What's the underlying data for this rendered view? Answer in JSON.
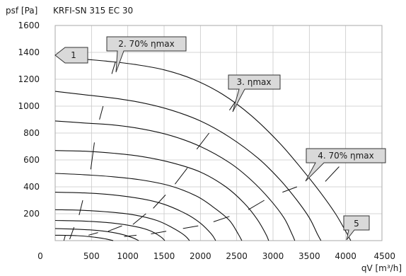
{
  "chart_data": {
    "type": "line",
    "title": "KRFI-SN 315 EC 30",
    "ylabel": "psf [Pa]",
    "xlabel": "qV [m³/h]",
    "xlim": [
      0,
      4500
    ],
    "ylim": [
      0,
      1600
    ],
    "x_ticks": [
      "0",
      "500",
      "1000",
      "1500",
      "2000",
      "2500",
      "3000",
      "3500",
      "4000",
      "4500"
    ],
    "y_ticks": [
      "200",
      "400",
      "600",
      "800",
      "1000",
      "1200",
      "1400",
      "1600"
    ],
    "grid": true,
    "callouts": [
      "1",
      "2. 70% ηmax",
      "3. ηmax",
      "4. 70% ηmax",
      "5"
    ],
    "series": [
      {
        "x": [
          0,
          300,
          700,
          1100,
          1500,
          1900,
          2300,
          2700,
          3100,
          3400,
          3650,
          3860,
          4010,
          4070
        ],
        "y": [
          1380,
          1355,
          1335,
          1310,
          1270,
          1200,
          1090,
          930,
          720,
          530,
          360,
          200,
          60,
          0
        ]
      },
      {
        "x": [
          0,
          400,
          800,
          1200,
          1600,
          2000,
          2400,
          2800,
          3100,
          3330,
          3500,
          3610,
          3660
        ],
        "y": [
          1110,
          1085,
          1060,
          1025,
          970,
          890,
          770,
          610,
          450,
          300,
          170,
          50,
          0
        ]
      },
      {
        "x": [
          0,
          400,
          800,
          1200,
          1600,
          2000,
          2400,
          2700,
          2950,
          3150,
          3260,
          3300
        ],
        "y": [
          890,
          875,
          860,
          830,
          780,
          700,
          580,
          450,
          310,
          170,
          50,
          0
        ]
      },
      {
        "x": [
          0,
          400,
          800,
          1200,
          1600,
          2000,
          2350,
          2600,
          2780,
          2900,
          2940
        ],
        "y": [
          670,
          665,
          650,
          625,
          580,
          510,
          400,
          280,
          160,
          50,
          0
        ]
      },
      {
        "x": [
          0,
          400,
          800,
          1200,
          1600,
          1950,
          2200,
          2400,
          2520,
          2570
        ],
        "y": [
          500,
          490,
          475,
          450,
          405,
          330,
          240,
          150,
          50,
          0
        ]
      },
      {
        "x": [
          0,
          400,
          800,
          1200,
          1500,
          1800,
          2000,
          2150,
          2210
        ],
        "y": [
          360,
          355,
          340,
          310,
          270,
          200,
          130,
          50,
          0
        ]
      },
      {
        "x": [
          0,
          400,
          800,
          1100,
          1400,
          1600,
          1780,
          1850
        ],
        "y": [
          230,
          225,
          210,
          190,
          150,
          100,
          40,
          0
        ]
      },
      {
        "x": [
          0,
          400,
          800,
          1100,
          1300,
          1450,
          1510
        ],
        "y": [
          150,
          145,
          130,
          105,
          75,
          30,
          0
        ]
      },
      {
        "x": [
          0,
          300,
          600,
          850,
          1050,
          1150
        ],
        "y": [
          90,
          85,
          75,
          55,
          25,
          0
        ]
      },
      {
        "x": [
          0,
          300,
          550,
          700,
          800
        ],
        "y": [
          40,
          37,
          25,
          12,
          0
        ]
      }
    ],
    "efficiency_ticks": [
      [
        [
          780,
          1240
        ],
        [
          830,
          1330
        ]
      ],
      [
        [
          610,
          900
        ],
        [
          660,
          1000
        ]
      ],
      [
        [
          490,
          530
        ],
        [
          540,
          730
        ]
      ],
      [
        [
          330,
          190
        ],
        [
          380,
          300
        ]
      ],
      [
        [
          200,
          10
        ],
        [
          260,
          100
        ]
      ],
      [
        [
          120,
          0
        ],
        [
          140,
          40
        ]
      ],
      [
        [
          2400,
          970
        ],
        [
          2530,
          1070
        ]
      ],
      [
        [
          1950,
          680
        ],
        [
          2120,
          800
        ]
      ],
      [
        [
          1650,
          420
        ],
        [
          1820,
          540
        ]
      ],
      [
        [
          1350,
          240
        ],
        [
          1520,
          340
        ]
      ],
      [
        [
          1070,
          120
        ],
        [
          1250,
          200
        ]
      ],
      [
        [
          730,
          70
        ],
        [
          920,
          110
        ]
      ],
      [
        [
          460,
          40
        ],
        [
          590,
          60
        ]
      ],
      [
        [
          3720,
          440
        ],
        [
          3910,
          550
        ]
      ],
      [
        [
          3130,
          360
        ],
        [
          3330,
          400
        ]
      ],
      [
        [
          2660,
          230
        ],
        [
          2880,
          300
        ]
      ],
      [
        [
          2180,
          140
        ],
        [
          2400,
          180
        ]
      ],
      [
        [
          1760,
          90
        ],
        [
          1970,
          110
        ]
      ],
      [
        [
          1320,
          50
        ],
        [
          1530,
          70
        ]
      ],
      [
        [
          950,
          30
        ],
        [
          1120,
          40
        ]
      ]
    ]
  }
}
